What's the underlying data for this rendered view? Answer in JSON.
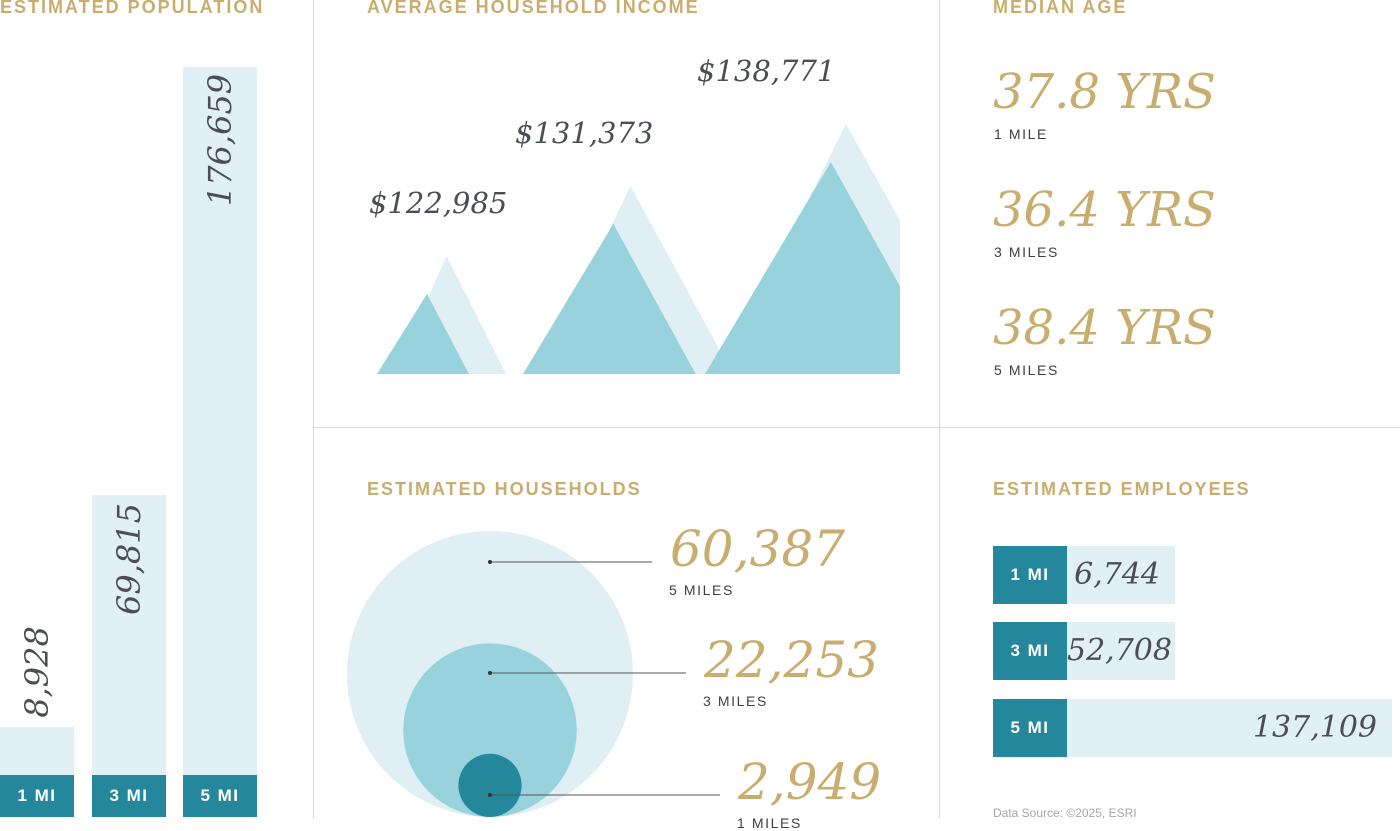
{
  "population": {
    "heading": "ESTIMATED POPULATION",
    "chart_data": {
      "type": "bar",
      "categories": [
        "1 MI",
        "3 MI",
        "5 MI"
      ],
      "values": [
        8928,
        69815,
        176659
      ],
      "value_labels": [
        "8,928",
        "69,815",
        "176,659"
      ],
      "title": "ESTIMATED POPULATION"
    }
  },
  "income": {
    "heading": "AVERAGE HOUSEHOLD INCOME",
    "chart_data": {
      "type": "bar",
      "marker": "triangle",
      "values": [
        122985,
        131373,
        138771
      ],
      "value_labels": [
        "$122,985",
        "$131,373",
        "$138,771"
      ],
      "title": "AVERAGE HOUSEHOLD INCOME"
    }
  },
  "age": {
    "heading": "MEDIAN AGE",
    "items": [
      {
        "value": "37.8 YRS",
        "label": "1 MILE"
      },
      {
        "value": "36.4 YRS",
        "label": "3 MILES"
      },
      {
        "value": "38.4 YRS",
        "label": "5 MILES"
      }
    ]
  },
  "households": {
    "heading": "ESTIMATED HOUSEHOLDS",
    "chart_data": {
      "type": "bubble",
      "values": [
        60387,
        22253,
        2949
      ],
      "value_labels": [
        "60,387",
        "22,253",
        "2,949"
      ],
      "labels": [
        "5 MILES",
        "3 MILES",
        "1 MILES"
      ],
      "title": "ESTIMATED HOUSEHOLDS"
    }
  },
  "employees": {
    "heading": "ESTIMATED EMPLOYEES",
    "chart_data": {
      "type": "bar",
      "orientation": "horizontal",
      "categories": [
        "1 MI",
        "3 MI",
        "5 MI"
      ],
      "values": [
        6744,
        52708,
        137109
      ],
      "value_labels": [
        "6,744",
        "52,708",
        "137,109"
      ],
      "title": "ESTIMATED EMPLOYEES"
    }
  },
  "source": "Data Source: ©2025, ESRI",
  "colors": {
    "gold": "#c9ad6e",
    "teal": "#24879b",
    "light_blue": "#e1f0f5",
    "mid_blue": "#98d2dd",
    "light_triangle": "#dfeff4",
    "dark_text": "#4b4f55"
  }
}
